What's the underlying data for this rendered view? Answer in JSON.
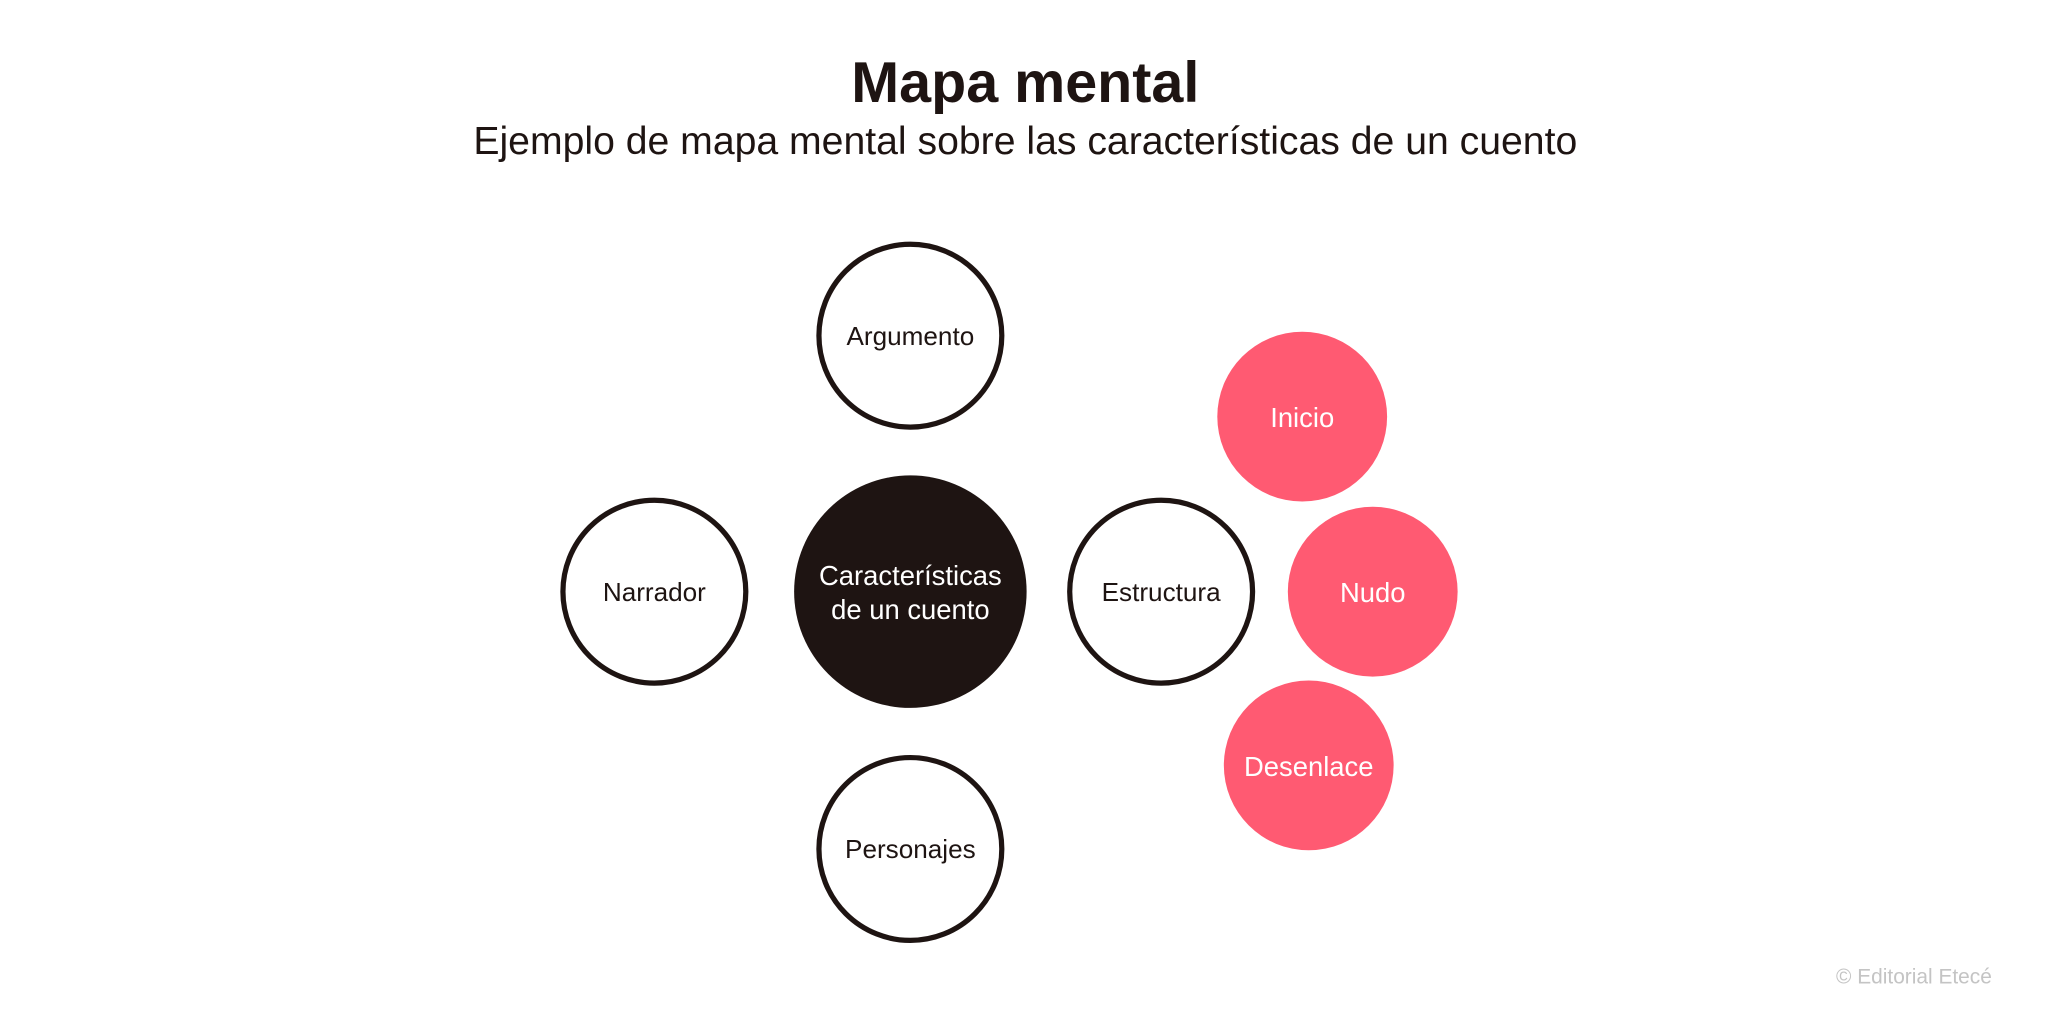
{
  "title": "Mapa mental",
  "subtitle": "Ejemplo de mapa mental sobre las características de un cuento",
  "colors": {
    "dark": "#1e1412",
    "accent": "#ff5a72"
  },
  "center": {
    "line1": "Características",
    "line2": "de un cuento"
  },
  "branches": {
    "argumento": "Argumento",
    "narrador": "Narrador",
    "estructura": "Estructura",
    "personajes": "Personajes"
  },
  "structure_parts": {
    "inicio": "Inicio",
    "nudo": "Nudo",
    "desenlace": "Desenlace"
  },
  "watermark": "© Editorial Etecé"
}
